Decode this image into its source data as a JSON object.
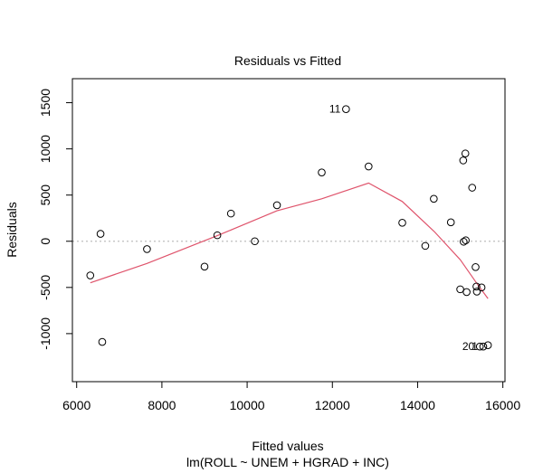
{
  "chart_data": {
    "type": "scatter",
    "title": "Residuals vs Fitted",
    "xlabel": "Fitted values",
    "subtitle": "lm(ROLL ~ UNEM + HGRAD + INC)",
    "ylabel": "Residuals",
    "xlim": [
      5900,
      16050
    ],
    "ylim": [
      -1520,
      1760
    ],
    "x_ticks": [
      6000,
      8000,
      10000,
      12000,
      14000,
      16000
    ],
    "y_ticks": [
      -1000,
      -500,
      0,
      500,
      1000,
      1500
    ],
    "x_tick_labels": [
      "6000",
      "8000",
      "10000",
      "12000",
      "14000",
      "16000"
    ],
    "y_tick_labels": [
      "-1000",
      "-500",
      "0",
      "500",
      "1000",
      "1500"
    ],
    "grid": false,
    "zero_line": {
      "y": 0,
      "style": "dotted",
      "color": "#bebebe"
    },
    "points": [
      {
        "x": 6320,
        "y": -370
      },
      {
        "x": 6560,
        "y": 80
      },
      {
        "x": 6600,
        "y": -1090
      },
      {
        "x": 7650,
        "y": -85
      },
      {
        "x": 9000,
        "y": -275
      },
      {
        "x": 9300,
        "y": 65
      },
      {
        "x": 9620,
        "y": 300
      },
      {
        "x": 10180,
        "y": 0
      },
      {
        "x": 10700,
        "y": 390
      },
      {
        "x": 11750,
        "y": 745
      },
      {
        "x": 12320,
        "y": 1430
      },
      {
        "x": 12850,
        "y": 810
      },
      {
        "x": 13640,
        "y": 200
      },
      {
        "x": 14180,
        "y": -50
      },
      {
        "x": 14380,
        "y": 460
      },
      {
        "x": 14780,
        "y": 205
      },
      {
        "x": 15000,
        "y": -520
      },
      {
        "x": 15070,
        "y": 875
      },
      {
        "x": 15080,
        "y": -5
      },
      {
        "x": 15120,
        "y": 950
      },
      {
        "x": 15130,
        "y": 10
      },
      {
        "x": 15150,
        "y": -550
      },
      {
        "x": 15280,
        "y": 580
      },
      {
        "x": 15360,
        "y": -280
      },
      {
        "x": 15380,
        "y": -490
      },
      {
        "x": 15390,
        "y": -545
      },
      {
        "x": 15460,
        "y": -1140
      },
      {
        "x": 15500,
        "y": -500
      },
      {
        "x": 15540,
        "y": -1140
      },
      {
        "x": 15650,
        "y": -1125
      }
    ],
    "point_labels": [
      {
        "text": "11",
        "x": 12320,
        "y": 1430
      },
      {
        "text": "20",
        "x": 15460,
        "y": -1140
      },
      {
        "text": "1",
        "x": 15540,
        "y": -1140
      }
    ],
    "smooth_line": {
      "color": "#df536b",
      "x": [
        6320,
        7650,
        9300,
        10700,
        11750,
        12850,
        13640,
        14400,
        15000,
        15380,
        15650
      ],
      "y": [
        -450,
        -240,
        60,
        330,
        460,
        630,
        430,
        100,
        -200,
        -450,
        -620
      ]
    }
  }
}
